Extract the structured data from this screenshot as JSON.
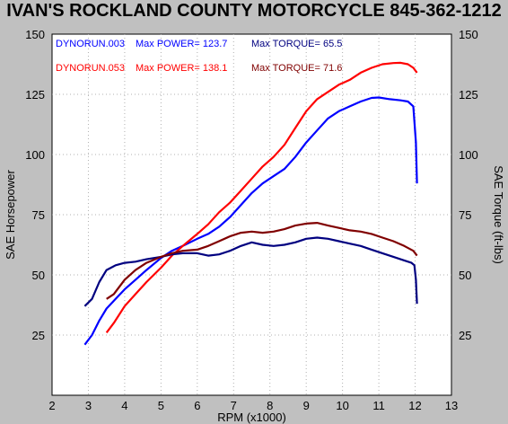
{
  "title": "IVAN'S ROCKLAND COUNTY MOTORCYCLE 845-362-1212",
  "chart_data": {
    "type": "line",
    "xlabel": "RPM (x1000)",
    "ylabel_left": "SAE Horsepower",
    "ylabel_right": "SAE Torque (ft-lbs)",
    "xlim": [
      2,
      13
    ],
    "ylim": [
      0,
      150
    ],
    "x_ticks": [
      "2",
      "3",
      "4",
      "5",
      "6",
      "7",
      "8",
      "9",
      "10",
      "11",
      "12",
      "13"
    ],
    "y_ticks": [
      "25",
      "50",
      "75",
      "100",
      "125",
      "150"
    ],
    "grid": true,
    "legend": [
      {
        "run": "DYNORUN.003",
        "power_label": "Max POWER= 123.7",
        "torque_label": "Max TORQUE= 65.5",
        "color": "#0000ff",
        "torque_color": "#000080"
      },
      {
        "run": "DYNORUN.053",
        "power_label": "Max POWER= 138.1",
        "torque_label": "Max TORQUE= 71.6",
        "color": "#ff0000",
        "torque_color": "#800000"
      }
    ],
    "series": [
      {
        "name": "DYNORUN.003",
        "kind": "power",
        "color": "#0000ff",
        "points": [
          [
            2.9,
            21
          ],
          [
            3.1,
            25
          ],
          [
            3.3,
            31
          ],
          [
            3.5,
            36
          ],
          [
            3.75,
            40
          ],
          [
            4.0,
            44
          ],
          [
            4.3,
            48
          ],
          [
            4.6,
            52
          ],
          [
            5.0,
            57
          ],
          [
            5.3,
            60
          ],
          [
            5.6,
            62
          ],
          [
            6.0,
            65
          ],
          [
            6.3,
            67
          ],
          [
            6.6,
            70
          ],
          [
            6.9,
            74
          ],
          [
            7.2,
            79
          ],
          [
            7.5,
            84
          ],
          [
            7.8,
            88
          ],
          [
            8.1,
            91
          ],
          [
            8.4,
            94
          ],
          [
            8.7,
            99
          ],
          [
            9.0,
            105
          ],
          [
            9.3,
            110
          ],
          [
            9.6,
            115
          ],
          [
            9.9,
            118
          ],
          [
            10.2,
            120
          ],
          [
            10.5,
            122
          ],
          [
            10.8,
            123.5
          ],
          [
            11.0,
            123.7
          ],
          [
            11.3,
            123
          ],
          [
            11.6,
            122.5
          ],
          [
            11.8,
            122
          ],
          [
            11.95,
            120
          ],
          [
            12.02,
            105
          ],
          [
            12.05,
            88
          ]
        ]
      },
      {
        "name": "DYNORUN.053",
        "kind": "power",
        "color": "#ff0000",
        "points": [
          [
            3.5,
            26
          ],
          [
            3.7,
            30
          ],
          [
            4.0,
            37
          ],
          [
            4.3,
            42
          ],
          [
            4.6,
            47
          ],
          [
            5.0,
            53
          ],
          [
            5.3,
            58
          ],
          [
            5.6,
            62
          ],
          [
            6.0,
            67
          ],
          [
            6.3,
            71
          ],
          [
            6.6,
            76
          ],
          [
            6.9,
            80
          ],
          [
            7.2,
            85
          ],
          [
            7.5,
            90
          ],
          [
            7.8,
            95
          ],
          [
            8.1,
            99
          ],
          [
            8.4,
            104
          ],
          [
            8.7,
            111
          ],
          [
            9.0,
            118
          ],
          [
            9.3,
            123
          ],
          [
            9.6,
            126
          ],
          [
            9.9,
            129
          ],
          [
            10.2,
            131
          ],
          [
            10.5,
            134
          ],
          [
            10.8,
            136
          ],
          [
            11.1,
            137.5
          ],
          [
            11.4,
            138
          ],
          [
            11.6,
            138.1
          ],
          [
            11.8,
            137.5
          ],
          [
            11.95,
            136
          ],
          [
            12.05,
            134
          ]
        ]
      },
      {
        "name": "DYNORUN.003",
        "kind": "torque",
        "color": "#000080",
        "points": [
          [
            2.9,
            37
          ],
          [
            3.1,
            40
          ],
          [
            3.3,
            47
          ],
          [
            3.5,
            52
          ],
          [
            3.75,
            54
          ],
          [
            4.0,
            55
          ],
          [
            4.3,
            55.5
          ],
          [
            4.6,
            56.5
          ],
          [
            5.0,
            57.5
          ],
          [
            5.3,
            58.5
          ],
          [
            5.6,
            59
          ],
          [
            6.0,
            59
          ],
          [
            6.3,
            58
          ],
          [
            6.6,
            58.5
          ],
          [
            6.9,
            60
          ],
          [
            7.2,
            62
          ],
          [
            7.5,
            63.5
          ],
          [
            7.8,
            62.5
          ],
          [
            8.1,
            62
          ],
          [
            8.4,
            62.5
          ],
          [
            8.7,
            63.5
          ],
          [
            9.0,
            65
          ],
          [
            9.3,
            65.5
          ],
          [
            9.6,
            65
          ],
          [
            9.9,
            64
          ],
          [
            10.2,
            63
          ],
          [
            10.5,
            62
          ],
          [
            10.8,
            60.5
          ],
          [
            11.1,
            59
          ],
          [
            11.4,
            57.5
          ],
          [
            11.7,
            56
          ],
          [
            11.9,
            55
          ],
          [
            11.98,
            54
          ],
          [
            12.02,
            48
          ],
          [
            12.05,
            38
          ]
        ]
      },
      {
        "name": "DYNORUN.053",
        "kind": "torque",
        "color": "#800000",
        "points": [
          [
            3.5,
            40
          ],
          [
            3.7,
            42
          ],
          [
            4.0,
            48
          ],
          [
            4.3,
            52
          ],
          [
            4.6,
            55
          ],
          [
            5.0,
            57.5
          ],
          [
            5.3,
            59
          ],
          [
            5.6,
            60
          ],
          [
            6.0,
            60.5
          ],
          [
            6.3,
            62
          ],
          [
            6.6,
            64
          ],
          [
            6.9,
            66
          ],
          [
            7.2,
            67.5
          ],
          [
            7.5,
            68
          ],
          [
            7.8,
            67.5
          ],
          [
            8.1,
            68
          ],
          [
            8.4,
            69
          ],
          [
            8.7,
            70.5
          ],
          [
            9.0,
            71.3
          ],
          [
            9.3,
            71.6
          ],
          [
            9.6,
            70.5
          ],
          [
            9.9,
            69.5
          ],
          [
            10.2,
            68.5
          ],
          [
            10.5,
            68
          ],
          [
            10.8,
            67
          ],
          [
            11.1,
            65.5
          ],
          [
            11.4,
            64
          ],
          [
            11.7,
            62
          ],
          [
            11.95,
            60
          ],
          [
            12.05,
            58
          ]
        ]
      }
    ]
  }
}
